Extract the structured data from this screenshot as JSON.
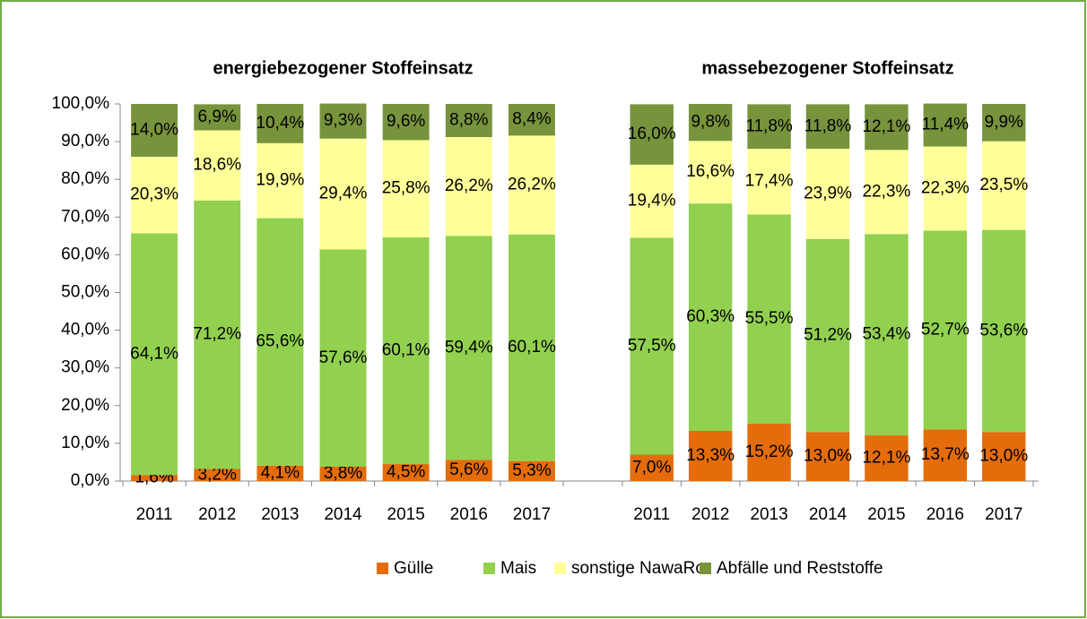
{
  "chart_data": [
    {
      "type": "bar",
      "stacked": true,
      "title": "energiebezogener Stoffeinsatz",
      "categories": [
        "2011",
        "2012",
        "2013",
        "2014",
        "2015",
        "2016",
        "2017"
      ],
      "ylim": [
        0,
        100
      ],
      "yticks": [
        {
          "value": 0,
          "label": "0,0%"
        },
        {
          "value": 10,
          "label": "10,0%"
        },
        {
          "value": 20,
          "label": "20,0%"
        },
        {
          "value": 30,
          "label": "30,0%"
        },
        {
          "value": 40,
          "label": "40,0%"
        },
        {
          "value": 50,
          "label": "50,0%"
        },
        {
          "value": 60,
          "label": "60,0%"
        },
        {
          "value": 70,
          "label": "70,0%"
        },
        {
          "value": 80,
          "label": "80,0%"
        },
        {
          "value": 90,
          "label": "90,0%"
        },
        {
          "value": 100,
          "label": "100,0%"
        }
      ],
      "legend": "bottom",
      "series": [
        {
          "name": "Gülle",
          "color": "#e46c0a",
          "values": [
            1.6,
            3.2,
            4.1,
            3.8,
            4.5,
            5.6,
            5.3
          ],
          "value_labels": [
            "1,6%",
            "3,2%",
            "4,1%",
            "3,8%",
            "4,5%",
            "5,6%",
            "5,3%"
          ]
        },
        {
          "name": "Mais",
          "color": "#92d050",
          "values": [
            64.1,
            71.2,
            65.6,
            57.6,
            60.1,
            59.4,
            60.1
          ],
          "value_labels": [
            "64,1%",
            "71,2%",
            "65,6%",
            "57,6%",
            "60,1%",
            "59,4%",
            "60,1%"
          ]
        },
        {
          "name": "sonstige NawaRo",
          "color": "#ffff99",
          "values": [
            20.3,
            18.6,
            19.9,
            29.4,
            25.8,
            26.2,
            26.2
          ],
          "value_labels": [
            "20,3%",
            "18,6%",
            "19,9%",
            "29,4%",
            "25,8%",
            "26,2%",
            "26,2%"
          ]
        },
        {
          "name": "Abfälle und Reststoffe",
          "color": "#77933c",
          "values": [
            14.0,
            6.9,
            10.4,
            9.3,
            9.6,
            8.8,
            8.4
          ],
          "value_labels": [
            "14,0%",
            "6,9%",
            "10,4%",
            "9,3%",
            "9,6%",
            "8,8%",
            "8,4%"
          ]
        }
      ]
    },
    {
      "type": "bar",
      "stacked": true,
      "title": "massebezogener Stoffeinsatz",
      "categories": [
        "2011",
        "2012",
        "2013",
        "2014",
        "2015",
        "2016",
        "2017"
      ],
      "ylim": [
        0,
        100
      ],
      "series": [
        {
          "color": "#e46c0a",
          "values": [
            7.0,
            13.3,
            15.2,
            13.0,
            12.1,
            13.7,
            13.0
          ],
          "value_labels": [
            "7,0%",
            "13,3%",
            "15,2%",
            "13,0%",
            "12,1%",
            "13,7%",
            "13,0%"
          ]
        },
        {
          "color": "#92d050",
          "values": [
            57.5,
            60.3,
            55.5,
            51.2,
            53.4,
            52.7,
            53.6
          ],
          "value_labels": [
            "57,5%",
            "60,3%",
            "55,5%",
            "51,2%",
            "53,4%",
            "52,7%",
            "53,6%"
          ]
        },
        {
          "color": "#ffff99",
          "values": [
            19.4,
            16.6,
            17.4,
            23.9,
            22.3,
            22.3,
            23.5
          ],
          "value_labels": [
            "19,4%",
            "16,6%",
            "17,4%",
            "23,9%",
            "22,3%",
            "22,3%",
            "23,5%"
          ]
        },
        {
          "color": "#77933c",
          "values": [
            16.0,
            9.8,
            11.8,
            11.8,
            12.1,
            11.4,
            9.9
          ],
          "value_labels": [
            "16,0%",
            "9,8%",
            "11,8%",
            "11,8%",
            "12,1%",
            "11,4%",
            "9,9%"
          ]
        }
      ]
    }
  ]
}
